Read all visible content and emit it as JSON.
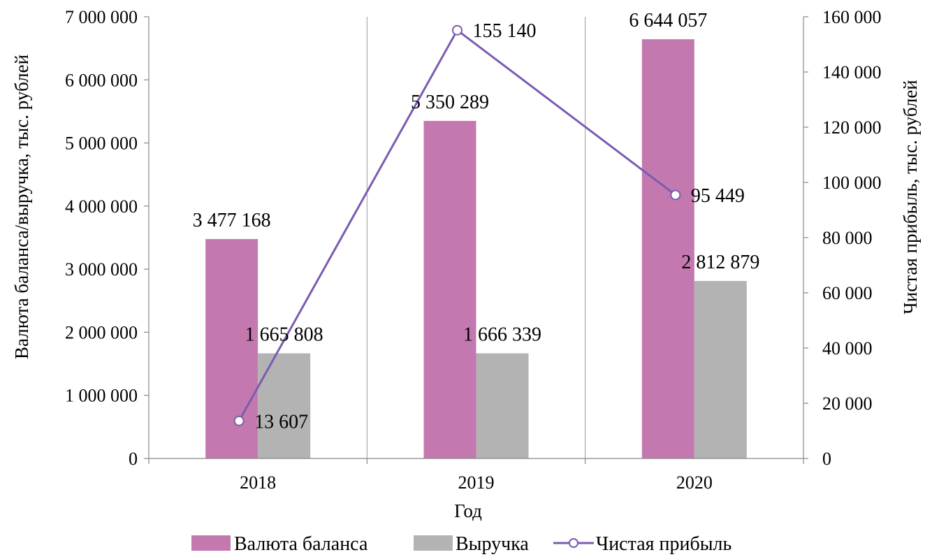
{
  "chart_data": {
    "type": "bar",
    "categories": [
      "2018",
      "2019",
      "2020"
    ],
    "xlabel": "Год",
    "ylabel_left": "Валюта баланса/выручка, тыс. рублей",
    "ylabel_right": "Чистая прибыль, тыс. рублей",
    "ylim_left": [
      0,
      7000000
    ],
    "ylim_right": [
      0,
      160000
    ],
    "yticks_left": [
      "0",
      "1 000 000",
      "2 000 000",
      "3 000 000",
      "4 000 000",
      "5 000 000",
      "6 000 000",
      "7 000 000"
    ],
    "yticks_right": [
      "0",
      "20 000",
      "40 000",
      "60 000",
      "80 000",
      "100 000",
      "120 000",
      "140 000",
      "160 000"
    ],
    "grid": "vertical",
    "legend_position": "bottom",
    "series": [
      {
        "name": "Валюта баланса",
        "type": "bar",
        "axis": "left",
        "color": "#c478b0",
        "values": [
          3477168,
          5350289,
          6644057
        ],
        "labels": [
          "3 477 168",
          "5 350 289",
          "6 644 057"
        ]
      },
      {
        "name": "Выручка",
        "type": "bar",
        "axis": "left",
        "color": "#b3b3b3",
        "values": [
          1665808,
          1666339,
          2812879
        ],
        "labels": [
          "1 665 808",
          "1 666 339",
          "2 812 879"
        ]
      },
      {
        "name": "Чистая прибыль",
        "type": "line",
        "axis": "right",
        "color": "#7b5cb0",
        "values": [
          13607,
          155140,
          95449
        ],
        "labels": [
          "13 607",
          "155 140",
          "95 449"
        ]
      }
    ]
  }
}
